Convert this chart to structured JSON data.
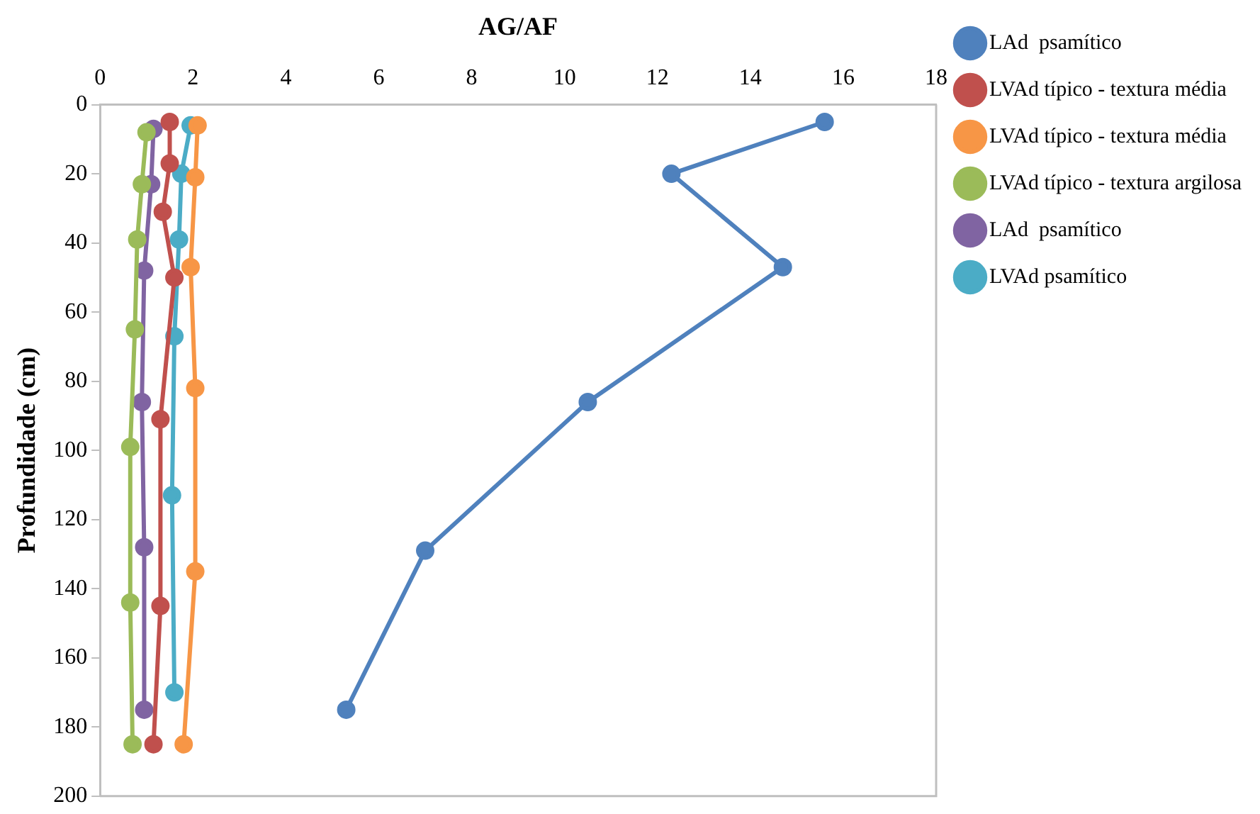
{
  "chart_data": {
    "type": "line",
    "xlabel": "AG/AF",
    "ylabel": "Profundidade (cm)",
    "xlim": [
      0,
      18
    ],
    "xticks": [
      0,
      2,
      4,
      6,
      8,
      10,
      12,
      14,
      16,
      18
    ],
    "ylim": [
      200,
      0
    ],
    "yticks": [
      0,
      20,
      40,
      60,
      80,
      100,
      120,
      140,
      160,
      180,
      200
    ],
    "grid": false,
    "legend": "right",
    "marker": "circle",
    "line_style": "solid",
    "series": [
      {
        "name": "LAd  psamítico",
        "color": "#4f81bd",
        "x": [
          15.6,
          12.3,
          14.7,
          10.5,
          7.0,
          5.3
        ],
        "values": [
          5,
          20,
          47,
          86,
          129,
          175
        ]
      },
      {
        "name": "LVAd típico - textura média",
        "color": "#c0504d",
        "x": [
          1.5,
          1.5,
          1.35,
          1.6,
          1.3,
          1.3,
          1.15
        ],
        "values": [
          5,
          17,
          31,
          50,
          91,
          145,
          185
        ]
      },
      {
        "name": "LVAd típico - textura média",
        "color": "#f79646",
        "x": [
          2.1,
          2.05,
          1.95,
          2.05,
          2.05,
          1.8
        ],
        "values": [
          6,
          21,
          47,
          82,
          135,
          185
        ]
      },
      {
        "name": "LVAd típico - textura argilosa",
        "color": "#9bbb59",
        "x": [
          1.0,
          0.9,
          0.8,
          0.75,
          0.65,
          0.65,
          0.7
        ],
        "values": [
          8,
          23,
          39,
          65,
          99,
          144,
          185
        ]
      },
      {
        "name": "LAd  psamítico",
        "color": "#8064a2",
        "x": [
          1.15,
          1.1,
          0.95,
          0.9,
          0.95,
          0.95
        ],
        "values": [
          7,
          23,
          48,
          86,
          128,
          175
        ]
      },
      {
        "name": "LVAd psamítico",
        "color": "#4bacc6",
        "x": [
          1.95,
          1.75,
          1.7,
          1.6,
          1.55,
          1.6
        ],
        "values": [
          6,
          20,
          39,
          67,
          113,
          170
        ]
      }
    ]
  }
}
